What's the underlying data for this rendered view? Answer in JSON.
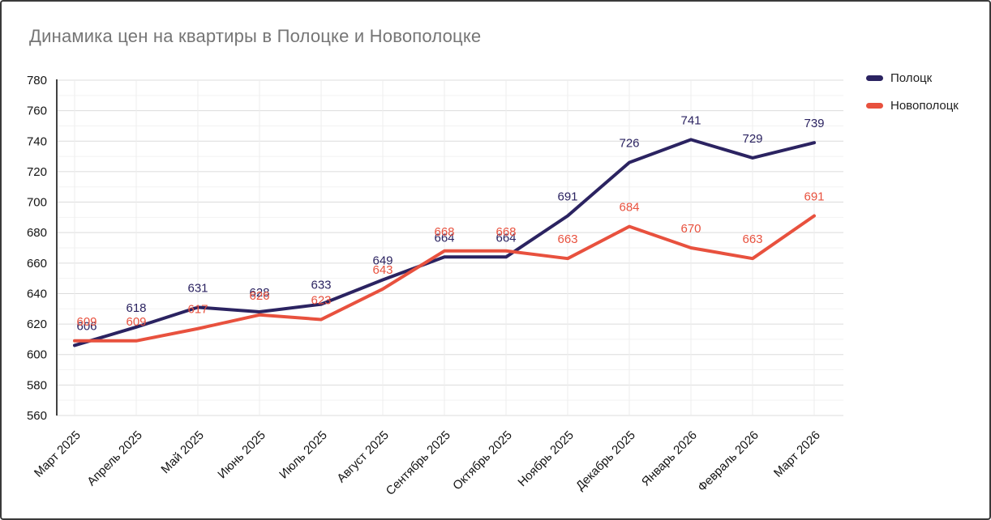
{
  "title": {
    "text": "Динамика цен на квартиры в Полоцке и Новополоцке"
  },
  "colors": {
    "title_text": "#757575",
    "tick_text": "#141414",
    "grid_major": "#dcdcdc",
    "grid_minor": "#f2f2f2",
    "grid_vertical": "#ededed",
    "axis_line": "#424242",
    "frame_border": "#3a3a3a",
    "series_polotsk": "#2b2361",
    "series_novopolotsk": "#e8513e"
  },
  "legend": {
    "items": [
      {
        "label": "Полоцк",
        "color": "#2b2361"
      },
      {
        "label": "Новополоцк",
        "color": "#e8513e"
      }
    ]
  },
  "chart_data": {
    "type": "line",
    "title": "Динамика цен на квартиры в Полоцке и Новополоцке",
    "categories": [
      "Март 2025",
      "Апрель 2025",
      "Май 2025",
      "Июнь 2025",
      "Июль 2025",
      "Август 2025",
      "Сентябрь 2025",
      "Октябрь 2025",
      "Ноябрь 2025",
      "Декабрь 2025",
      "Январь 2026",
      "Февраль 2026",
      "Март 2026"
    ],
    "series": [
      {
        "name": "Полоцк",
        "color": "#2b2361",
        "values": [
          606,
          618,
          631,
          628,
          633,
          649,
          664,
          664,
          691,
          726,
          741,
          729,
          739
        ]
      },
      {
        "name": "Новополоцк",
        "color": "#e8513e",
        "values": [
          609,
          609,
          617,
          626,
          623,
          643,
          668,
          668,
          663,
          684,
          670,
          663,
          691
        ]
      }
    ],
    "ylim": [
      560,
      780
    ],
    "y_ticks": [
      560,
      580,
      600,
      620,
      640,
      660,
      680,
      700,
      720,
      740,
      760,
      780
    ],
    "y_major_step": 20,
    "y_minor_step": 10,
    "grid": "on",
    "value_labels": "above points",
    "legend_position": "right-top",
    "xlabel": "",
    "ylabel": ""
  }
}
